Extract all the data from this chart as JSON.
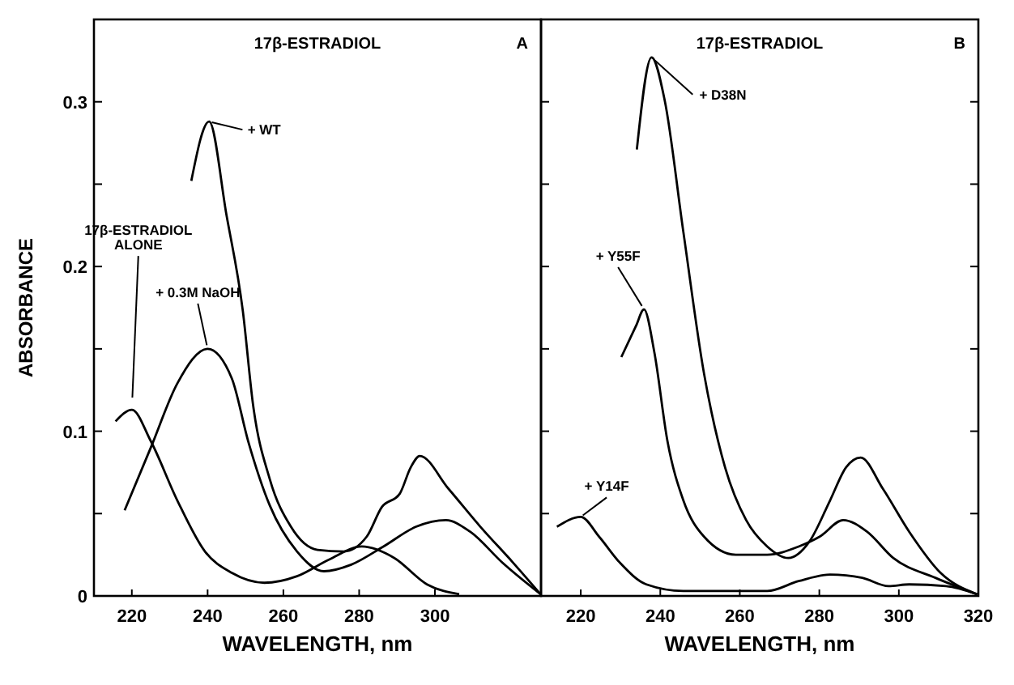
{
  "chart_data": [
    {
      "type": "line",
      "title": "17β-ESTRADIOL",
      "annotations": [
        "A"
      ],
      "xlabel": "WAVELENGTH, nm",
      "ylabel": "ABSORBANCE",
      "xlim": [
        210,
        328
      ],
      "xticks": [
        220,
        240,
        260,
        280,
        300
      ],
      "ylim": [
        0,
        0.35
      ],
      "yticks": [
        0,
        {
          "value": 0.05,
          "label": null
        },
        0.1,
        {
          "value": 0.15,
          "label": null
        },
        0.2,
        {
          "value": 0.25,
          "label": null
        },
        0.3
      ],
      "line_style": "solid",
      "series": [
        {
          "name": "+ WT",
          "color": "#000000",
          "x": [
            235.7,
            240.4,
            245,
            249.3,
            252,
            256.4,
            262,
            269,
            276,
            282,
            286,
            290.7,
            293.6,
            296,
            303.6,
            312,
            320.7,
            327.9
          ],
          "values": [
            0.252,
            0.288,
            0.231,
            0.173,
            0.116,
            0.071,
            0.042,
            0.028,
            0.027,
            0.036,
            0.054,
            0.062,
            0.078,
            0.085,
            0.065,
            0.042,
            0.02,
            0.001
          ]
        },
        {
          "name": "+ 0.3M NaOH",
          "color": "#000000",
          "x": [
            218.1,
            225,
            232,
            240,
            246.4,
            250.7,
            256.4,
            263.6,
            270.7,
            277.9,
            286.4,
            295,
            302.9,
            309.3,
            317.9,
            327.9
          ],
          "values": [
            0.052,
            0.09,
            0.129,
            0.15,
            0.132,
            0.094,
            0.055,
            0.027,
            0.015,
            0.019,
            0.03,
            0.042,
            0.046,
            0.039,
            0.02,
            0.001
          ]
        },
        {
          "name": "17β-ESTRADIOL ALONE",
          "color": "#000000",
          "x": [
            215.7,
            220,
            225,
            232,
            239.3,
            246.4,
            255,
            263.6,
            272,
            280.7,
            289.3,
            297.9,
            306.4
          ],
          "values": [
            0.106,
            0.113,
            0.094,
            0.058,
            0.027,
            0.014,
            0.008,
            0.012,
            0.022,
            0.03,
            0.023,
            0.007,
            0.001
          ]
        }
      ]
    },
    {
      "type": "line",
      "title": "17β-ESTRADIOL",
      "annotations": [
        "B"
      ],
      "xlabel": "WAVELENGTH, nm",
      "xlim": [
        210,
        320
      ],
      "xticks": [
        220,
        240,
        260,
        280,
        300,
        320
      ],
      "ylim": [
        0,
        0.35
      ],
      "yticks": [
        {
          "value": 0,
          "label": null
        },
        {
          "value": 0.05,
          "label": null
        },
        {
          "value": 0.1,
          "label": null
        },
        {
          "value": 0.15,
          "label": null
        },
        {
          "value": 0.2,
          "label": null
        },
        {
          "value": 0.25,
          "label": null
        },
        {
          "value": 0.3,
          "label": null
        }
      ],
      "tick_labels": "x",
      "line_style": "solid",
      "series": [
        {
          "name": "+ D38N",
          "color": "#000000",
          "x": [
            234.1,
            237.8,
            241.1,
            245.8,
            251,
            256.3,
            261.6,
            266.9,
            272.2,
            277.5,
            282.7,
            286.7,
            290.4,
            296,
            302.6,
            310.5,
            319.7
          ],
          "values": [
            0.271,
            0.327,
            0.301,
            0.221,
            0.135,
            0.078,
            0.046,
            0.03,
            0.023,
            0.033,
            0.058,
            0.078,
            0.084,
            0.065,
            0.039,
            0.014,
            0.001
          ]
        },
        {
          "name": "+ Y55F",
          "color": "#000000",
          "x": [
            230.2,
            233.9,
            235.9,
            238.5,
            241.8,
            245.8,
            251,
            259,
            266.9,
            274.8,
            280.1,
            286,
            292,
            298.6,
            309.2,
            319.7
          ],
          "values": [
            0.145,
            0.164,
            0.174,
            0.148,
            0.094,
            0.058,
            0.036,
            0.025,
            0.025,
            0.03,
            0.036,
            0.046,
            0.039,
            0.023,
            0.011,
            0.001
          ]
        },
        {
          "name": "+ Y14F",
          "color": "#000000",
          "x": [
            214,
            220,
            224.6,
            229.9,
            236.5,
            245.8,
            266.9,
            274.8,
            282.7,
            290.8,
            297.4,
            302.6,
            311.9,
            319.7
          ],
          "values": [
            0.042,
            0.048,
            0.036,
            0.02,
            0.007,
            0.003,
            0.003,
            0.009,
            0.013,
            0.011,
            0.006,
            0.007,
            0.006,
            0.001
          ]
        }
      ]
    }
  ]
}
